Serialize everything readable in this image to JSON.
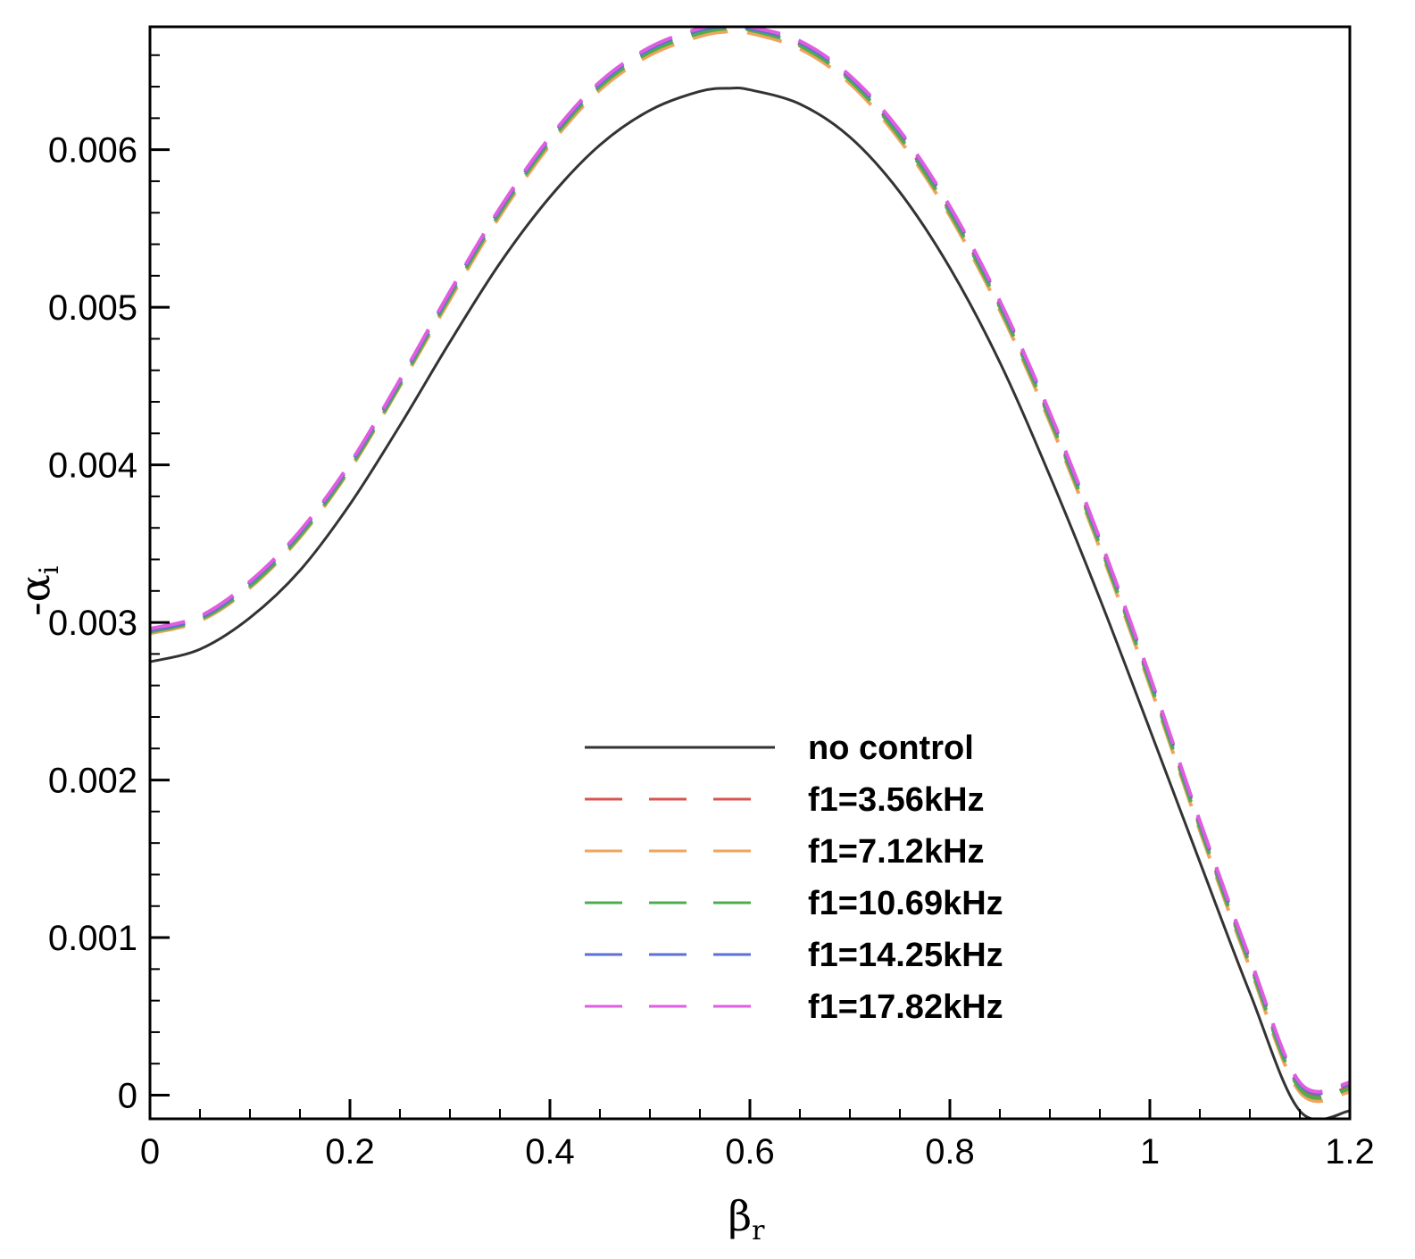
{
  "chart_data": {
    "type": "line",
    "title": "",
    "xlabel": {
      "symbol": "β",
      "subscript": "r"
    },
    "ylabel": {
      "symbol": "-α",
      "subscript": "i"
    },
    "xlim": [
      0,
      1.2
    ],
    "ylim": [
      -0.00015,
      0.00678
    ],
    "x_ticks": [
      "0",
      "0.2",
      "0.4",
      "0.6",
      "0.8",
      "1",
      "1.2"
    ],
    "y_ticks": [
      "0",
      "0.001",
      "0.002",
      "0.003",
      "0.004",
      "0.005",
      "0.006"
    ],
    "grid": false,
    "legend_position": "lower-center",
    "series": [
      {
        "name": "no control",
        "color": "#333333",
        "dash": "solid",
        "x": [
          0,
          0.05,
          0.1,
          0.15,
          0.2,
          0.25,
          0.3,
          0.35,
          0.4,
          0.45,
          0.5,
          0.55,
          0.58,
          0.6,
          0.65,
          0.7,
          0.75,
          0.8,
          0.85,
          0.9,
          0.95,
          1.0,
          1.05,
          1.1,
          1.15,
          1.2
        ],
        "y": [
          0.00275,
          0.00283,
          0.00303,
          0.00333,
          0.00375,
          0.00425,
          0.00478,
          0.00528,
          0.0057,
          0.00603,
          0.00625,
          0.00637,
          0.00639,
          0.00638,
          0.00629,
          0.00608,
          0.00573,
          0.00525,
          0.00465,
          0.00393,
          0.00315,
          0.00232,
          0.00148,
          0.00065,
          -0.0001,
          -0.0001
        ]
      },
      {
        "name": "f1=3.56kHz",
        "color": "#d9534f",
        "dash": "dashed",
        "x": [
          0,
          0.05,
          0.1,
          0.15,
          0.2,
          0.25,
          0.3,
          0.35,
          0.4,
          0.45,
          0.5,
          0.55,
          0.58,
          0.6,
          0.65,
          0.7,
          0.75,
          0.8,
          0.85,
          0.9,
          0.95,
          1.0,
          1.05,
          1.1,
          1.15,
          1.2
        ],
        "y": [
          0.00295,
          0.00303,
          0.00325,
          0.00357,
          0.004,
          0.00453,
          0.00509,
          0.00562,
          0.00607,
          0.00642,
          0.00664,
          0.00676,
          0.00678,
          0.00677,
          0.00667,
          0.00645,
          0.00609,
          0.00561,
          0.00501,
          0.0043,
          0.0035,
          0.00263,
          0.00171,
          0.00084,
          5e-05,
          5e-05
        ]
      },
      {
        "name": "f1=7.12kHz",
        "color": "#f0a35c",
        "dash": "dashed",
        "x": [
          0,
          0.05,
          0.1,
          0.15,
          0.2,
          0.25,
          0.3,
          0.35,
          0.4,
          0.45,
          0.5,
          0.55,
          0.58,
          0.6,
          0.65,
          0.7,
          0.75,
          0.8,
          0.85,
          0.9,
          0.95,
          1.0,
          1.05,
          1.1,
          1.15,
          1.2
        ],
        "y": [
          0.00293,
          0.00301,
          0.00322,
          0.00354,
          0.00397,
          0.0045,
          0.00505,
          0.00558,
          0.00603,
          0.00638,
          0.0066,
          0.00672,
          0.00675,
          0.00674,
          0.00664,
          0.00642,
          0.00606,
          0.00558,
          0.00498,
          0.00427,
          0.00347,
          0.0026,
          0.00168,
          0.00081,
          2e-05,
          2e-05
        ]
      },
      {
        "name": "f1=10.69kHz",
        "color": "#4cae4c",
        "dash": "dashed",
        "x": [
          0,
          0.05,
          0.1,
          0.15,
          0.2,
          0.25,
          0.3,
          0.35,
          0.4,
          0.45,
          0.5,
          0.55,
          0.58,
          0.6,
          0.65,
          0.7,
          0.75,
          0.8,
          0.85,
          0.9,
          0.95,
          1.0,
          1.05,
          1.1,
          1.15,
          1.2
        ],
        "y": [
          0.00294,
          0.00302,
          0.00323,
          0.00355,
          0.00398,
          0.00451,
          0.00507,
          0.0056,
          0.00605,
          0.0064,
          0.00662,
          0.00674,
          0.00677,
          0.00676,
          0.00666,
          0.00644,
          0.00608,
          0.0056,
          0.005,
          0.00429,
          0.00349,
          0.00262,
          0.0017,
          0.00083,
          4e-05,
          4e-05
        ]
      },
      {
        "name": "f1=14.25kHz",
        "color": "#5b6fd6",
        "dash": "dashed",
        "x": [
          0,
          0.05,
          0.1,
          0.15,
          0.2,
          0.25,
          0.3,
          0.35,
          0.4,
          0.45,
          0.5,
          0.55,
          0.58,
          0.6,
          0.65,
          0.7,
          0.75,
          0.8,
          0.85,
          0.9,
          0.95,
          1.0,
          1.05,
          1.1,
          1.15,
          1.2
        ],
        "y": [
          0.00295,
          0.00303,
          0.00325,
          0.00357,
          0.004,
          0.00453,
          0.00509,
          0.00562,
          0.00607,
          0.00642,
          0.00664,
          0.00676,
          0.00678,
          0.00677,
          0.00668,
          0.00646,
          0.00611,
          0.00563,
          0.00503,
          0.00432,
          0.00352,
          0.00265,
          0.00173,
          0.00086,
          7e-05,
          7e-05
        ]
      },
      {
        "name": "f1=17.82kHz",
        "color": "#e05ce0",
        "dash": "dashed",
        "x": [
          0,
          0.05,
          0.1,
          0.15,
          0.2,
          0.25,
          0.3,
          0.35,
          0.4,
          0.45,
          0.5,
          0.55,
          0.58,
          0.6,
          0.65,
          0.7,
          0.75,
          0.8,
          0.85,
          0.9,
          0.95,
          1.0,
          1.05,
          1.1,
          1.15,
          1.2
        ],
        "y": [
          0.00296,
          0.00304,
          0.00326,
          0.00358,
          0.00401,
          0.00454,
          0.0051,
          0.00563,
          0.00608,
          0.00643,
          0.00665,
          0.00677,
          0.00679,
          0.00678,
          0.00669,
          0.00647,
          0.00612,
          0.00564,
          0.00504,
          0.00433,
          0.00353,
          0.00266,
          0.00174,
          0.00087,
          8e-05,
          8e-05
        ]
      }
    ]
  }
}
